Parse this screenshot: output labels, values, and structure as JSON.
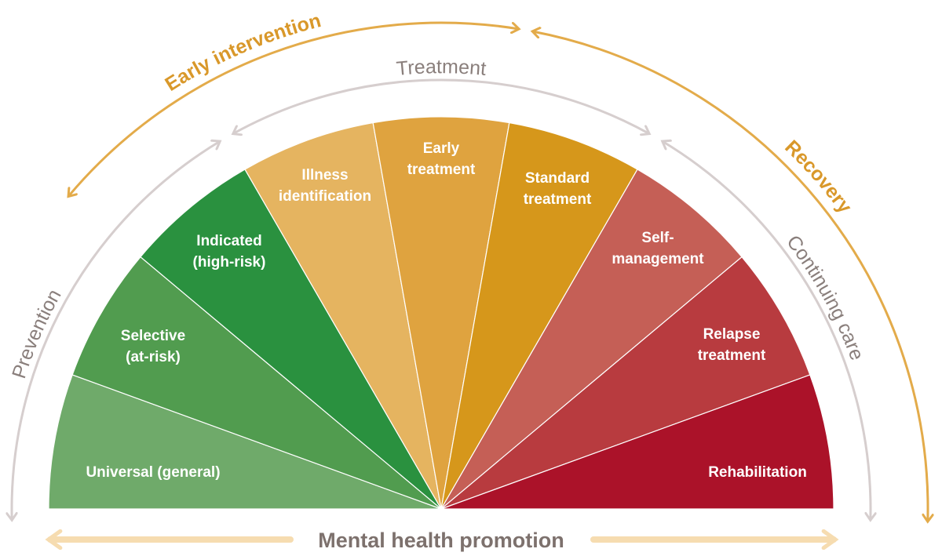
{
  "segments": [
    {
      "label": [
        "Universal (general)"
      ],
      "color": "#6faa6a"
    },
    {
      "label": [
        "Selective",
        "(at-risk)"
      ],
      "color": "#519c4f"
    },
    {
      "label": [
        "Indicated",
        "(high-risk)"
      ],
      "color": "#2a913f"
    },
    {
      "label": [
        "Illness",
        "identification"
      ],
      "color": "#e5b460"
    },
    {
      "label": [
        "Early",
        "treatment"
      ],
      "color": "#dfa33f"
    },
    {
      "label": [
        "Standard",
        "treatment"
      ],
      "color": "#d6971b"
    },
    {
      "label": [
        "Self-",
        "management"
      ],
      "color": "#c55f56"
    },
    {
      "label": [
        "Relapse",
        "treatment"
      ],
      "color": "#b83b3f"
    },
    {
      "label": [
        "Rehabilitation"
      ],
      "color": "#ab1229"
    }
  ],
  "inner_arcs": {
    "prevention": "Prevention",
    "treatment": "Treatment",
    "continuing_care": "Continuing care",
    "color": "#d6cece"
  },
  "outer_arcs": {
    "early_intervention": "Early intervention",
    "recovery": "Recovery",
    "color": "#e3ab4a"
  },
  "baseline": {
    "label": "Mental health promotion",
    "color": "#f6dcb0"
  }
}
